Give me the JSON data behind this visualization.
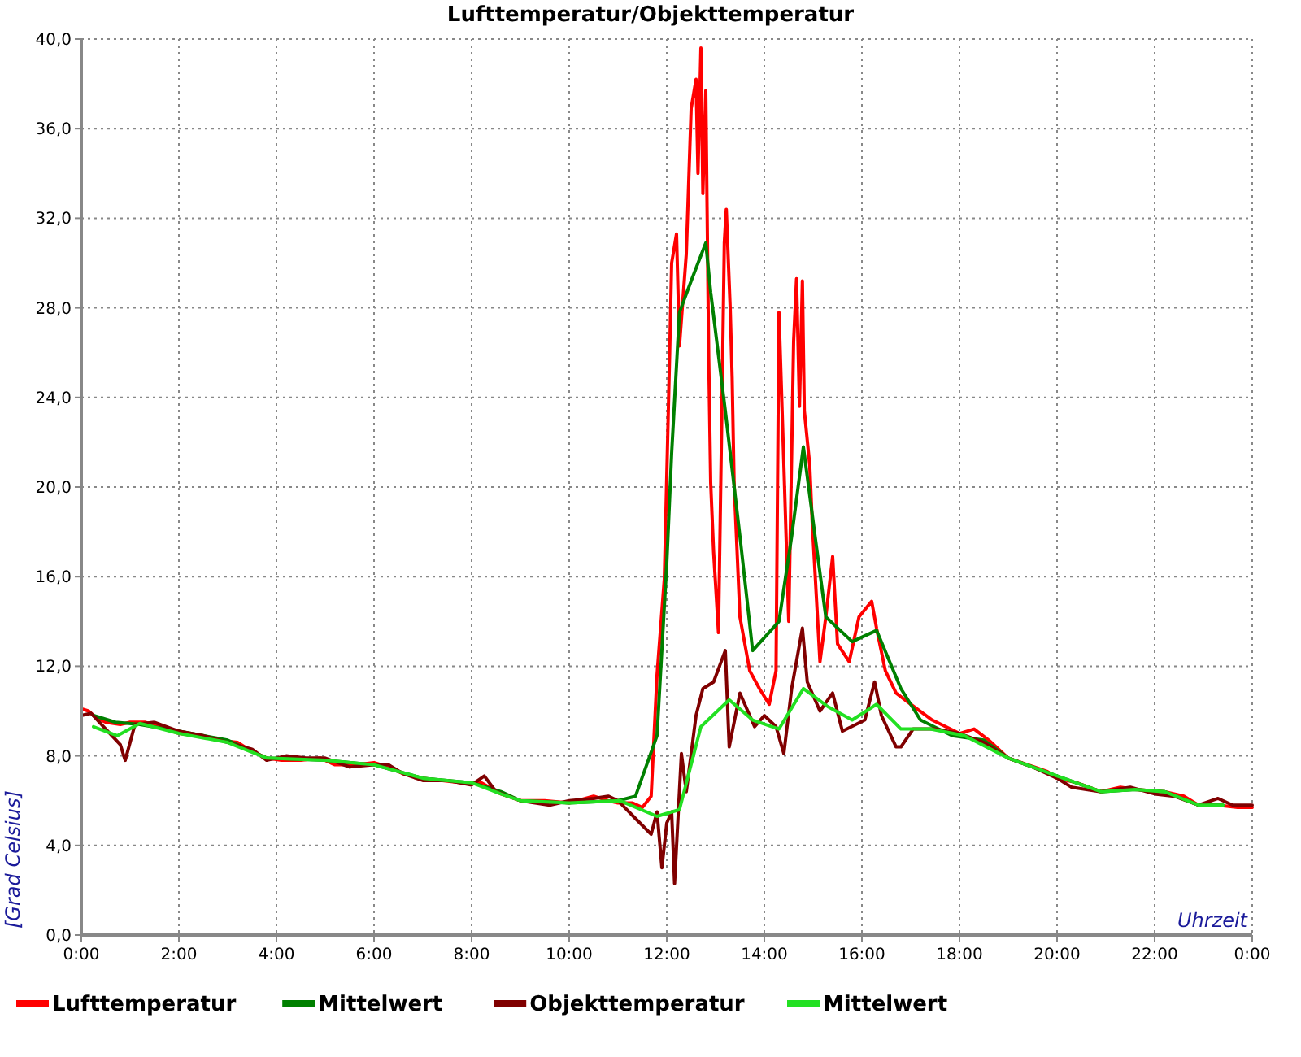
{
  "chart_data": {
    "type": "line",
    "title": "Lufttemperatur/Objekttemperatur",
    "xlabel": "Uhrzeit",
    "ylabel": "[Grad Celsius]",
    "xlim": [
      0,
      24
    ],
    "xticks": [
      {
        "value": 0,
        "label": "0:00"
      },
      {
        "value": 2,
        "label": "2:00"
      },
      {
        "value": 4,
        "label": "4:00"
      },
      {
        "value": 6,
        "label": "6:00"
      },
      {
        "value": 8,
        "label": "8:00"
      },
      {
        "value": 10,
        "label": "10:00"
      },
      {
        "value": 12,
        "label": "12:00"
      },
      {
        "value": 14,
        "label": "14:00"
      },
      {
        "value": 16,
        "label": "16:00"
      },
      {
        "value": 18,
        "label": "18:00"
      },
      {
        "value": 20,
        "label": "20:00"
      },
      {
        "value": 22,
        "label": "22:00"
      },
      {
        "value": 24,
        "label": "0:00"
      }
    ],
    "ylim": [
      0,
      40
    ],
    "yticks": [
      {
        "value": 0,
        "label": "0,0"
      },
      {
        "value": 4,
        "label": "4,0"
      },
      {
        "value": 8,
        "label": "8,0"
      },
      {
        "value": 12,
        "label": "12,0"
      },
      {
        "value": 16,
        "label": "16,0"
      },
      {
        "value": 20,
        "label": "20,0"
      },
      {
        "value": 24,
        "label": "24,0"
      },
      {
        "value": 28,
        "label": "28,0"
      },
      {
        "value": 32,
        "label": "32,0"
      },
      {
        "value": 36,
        "label": "36,0"
      },
      {
        "value": 40,
        "label": "40,0"
      }
    ],
    "grid": true,
    "legend": "bottom",
    "series": [
      {
        "name": "Lufttemperatur",
        "color": "#ff0000",
        "x": [
          0,
          0.15,
          0.3,
          0.5,
          0.8,
          1,
          1.3,
          1.6,
          2,
          2.4,
          2.8,
          3.2,
          3.5,
          3.8,
          4.1,
          4.5,
          4.9,
          5.2,
          5.6,
          6,
          6.3,
          6.6,
          7,
          7.4,
          7.8,
          8.2,
          8.6,
          9,
          9.5,
          10,
          10.5,
          10.8,
          11,
          11.3,
          11.5,
          11.68,
          11.8,
          11.95,
          12.06,
          12.1,
          12.2,
          12.26,
          12.4,
          12.5,
          12.6,
          12.64,
          12.7,
          12.74,
          12.8,
          12.86,
          12.9,
          12.96,
          13.06,
          13.12,
          13.18,
          13.22,
          13.3,
          13.34,
          13.38,
          13.5,
          13.7,
          13.9,
          14.1,
          14.24,
          14.3,
          14.4,
          14.5,
          14.6,
          14.66,
          14.72,
          14.78,
          14.82,
          14.93,
          14.98,
          15.14,
          15.26,
          15.4,
          15.5,
          15.74,
          15.94,
          16.2,
          16.3,
          16.48,
          16.7,
          17,
          17.44,
          18,
          18.3,
          18.6,
          19,
          19.4,
          19.8,
          20,
          20.4,
          20.9,
          21.3,
          21.6,
          22.2,
          22.6,
          22.9,
          23.3,
          23.7,
          24
        ],
        "values": [
          10.1,
          10.0,
          9.7,
          9.5,
          9.4,
          9.5,
          9.5,
          9.3,
          9.0,
          8.9,
          8.7,
          8.6,
          8.2,
          7.9,
          7.8,
          7.8,
          7.9,
          7.6,
          7.6,
          7.7,
          7.5,
          7.2,
          7.0,
          6.9,
          6.8,
          6.8,
          6.3,
          6.0,
          6.0,
          5.9,
          6.2,
          6.0,
          5.9,
          5.9,
          5.7,
          6.2,
          11.6,
          15.9,
          26.0,
          30.0,
          31.3,
          26.3,
          30.4,
          36.9,
          38.2,
          34.0,
          39.6,
          33.1,
          37.7,
          25.8,
          20.2,
          17.1,
          13.5,
          22.0,
          30.9,
          32.4,
          28.0,
          24.9,
          20.2,
          14.2,
          11.8,
          11.0,
          10.3,
          11.8,
          27.8,
          21.0,
          14.0,
          26.5,
          29.3,
          23.6,
          29.2,
          23.4,
          21.0,
          18.5,
          12.2,
          14.2,
          16.9,
          13.0,
          12.2,
          14.2,
          14.9,
          13.7,
          11.8,
          10.8,
          10.3,
          9.6,
          9.0,
          9.2,
          8.7,
          7.9,
          7.6,
          7.3,
          7.0,
          6.8,
          6.4,
          6.6,
          6.5,
          6.4,
          6.2,
          5.8,
          5.8,
          5.7,
          5.7
        ]
      },
      {
        "name": "Mittelwert",
        "color": "#008000",
        "x": [
          0.25,
          0.7,
          1.2,
          2,
          3,
          3.8,
          5,
          6,
          7,
          8,
          8.6,
          9,
          10,
          11,
          11.36,
          11.8,
          12,
          12.1,
          12.26,
          12.5,
          12.8,
          12.9,
          13.2,
          13.5,
          13.76,
          14.3,
          14.56,
          14.8,
          15.04,
          15.26,
          15.8,
          16.3,
          16.8,
          17.2,
          17.85,
          18.5,
          19,
          20,
          20.9,
          21.6,
          22.2,
          22.9,
          23.4
        ],
        "values": [
          9.8,
          9.5,
          9.4,
          9.1,
          8.7,
          7.9,
          7.8,
          7.6,
          7.0,
          6.8,
          6.4,
          6.0,
          5.9,
          6.0,
          6.2,
          8.9,
          16.6,
          21.5,
          27.8,
          29.2,
          30.9,
          28.7,
          23.4,
          17.8,
          12.7,
          14.0,
          17.8,
          21.8,
          17.8,
          14.2,
          13.1,
          13.6,
          11.0,
          9.6,
          8.9,
          8.7,
          7.9,
          7.1,
          6.4,
          6.5,
          6.4,
          5.8,
          5.8
        ]
      },
      {
        "name": "Objekttemperatur",
        "color": "#800000",
        "x": [
          0,
          0.2,
          0.5,
          0.8,
          0.9,
          1.1,
          1.5,
          2,
          2.5,
          3,
          3.5,
          3.8,
          4.2,
          4.6,
          5,
          5.5,
          6,
          6.3,
          6.6,
          7,
          7.5,
          8,
          8.26,
          8.5,
          9,
          9.6,
          10,
          10.5,
          10.8,
          11,
          11.36,
          11.68,
          11.8,
          11.9,
          12,
          12.1,
          12.16,
          12.3,
          12.4,
          12.6,
          12.74,
          12.96,
          13.2,
          13.28,
          13.5,
          13.8,
          14,
          14.24,
          14.4,
          14.56,
          14.78,
          14.88,
          15.14,
          15.4,
          15.6,
          16.06,
          16.26,
          16.4,
          16.7,
          16.8,
          17.05,
          17.5,
          18,
          18.5,
          19,
          19.5,
          20,
          20.3,
          20.9,
          21.5,
          22,
          22.4,
          22.9,
          23.3,
          23.6,
          24
        ],
        "values": [
          9.8,
          9.9,
          9.2,
          8.5,
          7.8,
          9.4,
          9.5,
          9.1,
          8.9,
          8.6,
          8.3,
          7.8,
          8.0,
          7.9,
          7.9,
          7.5,
          7.6,
          7.6,
          7.2,
          6.9,
          6.9,
          6.7,
          7.1,
          6.4,
          6.0,
          5.8,
          6.0,
          6.1,
          6.2,
          6.0,
          5.2,
          4.5,
          5.5,
          3.0,
          5.0,
          5.5,
          2.3,
          8.1,
          6.4,
          9.8,
          11.0,
          11.3,
          12.7,
          8.4,
          10.8,
          9.3,
          9.8,
          9.3,
          8.1,
          11.0,
          13.7,
          11.3,
          10.0,
          10.8,
          9.1,
          9.6,
          11.3,
          9.8,
          8.4,
          8.4,
          9.2,
          9.2,
          9.0,
          8.6,
          7.9,
          7.5,
          7.0,
          6.6,
          6.4,
          6.6,
          6.3,
          6.2,
          5.8,
          6.1,
          5.8,
          5.8
        ]
      },
      {
        "name": "Mittelwert",
        "color": "#22e022",
        "x": [
          0.25,
          0.74,
          1.2,
          2,
          3,
          3.8,
          5,
          6,
          7,
          8,
          8.6,
          9,
          10,
          11.04,
          11.8,
          12.26,
          12.7,
          13.28,
          13.76,
          14.3,
          14.8,
          15.3,
          15.8,
          16.3,
          16.8,
          17.4,
          18.1,
          19,
          20,
          20.9,
          21.6,
          22.2,
          22.9,
          23.4
        ],
        "values": [
          9.3,
          8.9,
          9.45,
          9.0,
          8.6,
          7.9,
          7.8,
          7.6,
          7.0,
          6.8,
          6.3,
          6.0,
          5.9,
          6.0,
          5.3,
          5.6,
          9.3,
          10.5,
          9.6,
          9.2,
          11.0,
          10.2,
          9.6,
          10.3,
          9.2,
          9.2,
          8.9,
          7.9,
          7.1,
          6.4,
          6.5,
          6.4,
          5.8,
          5.8
        ]
      }
    ]
  }
}
